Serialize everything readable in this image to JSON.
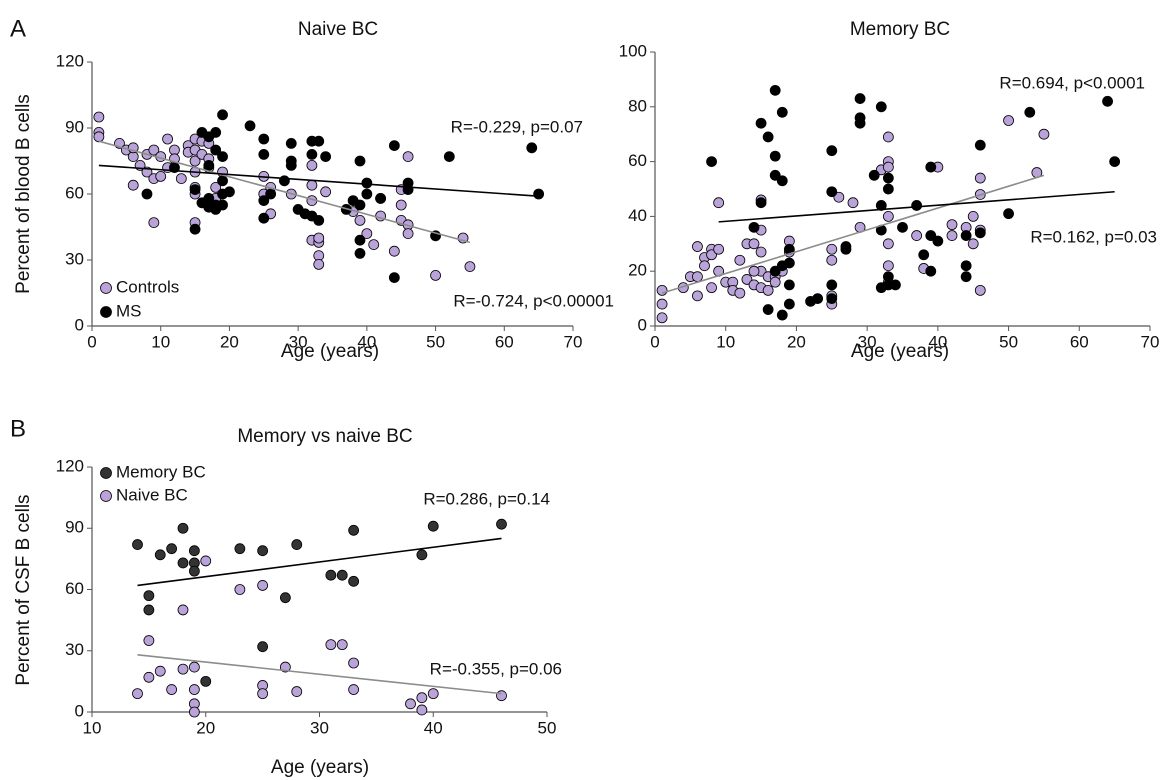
{
  "panel_labels": [
    "A",
    "B"
  ],
  "chart_data": [
    {
      "type": "scatter",
      "title": "Naive BC",
      "xlabel": "Age (years)",
      "ylabel": "Percent of blood B cells",
      "xlim": [
        0,
        70
      ],
      "ylim": [
        0,
        120
      ],
      "xticks": [
        0,
        10,
        20,
        30,
        40,
        50,
        60,
        70
      ],
      "yticks": [
        0,
        30,
        60,
        90,
        120
      ],
      "series": [
        {
          "name": "Controls",
          "color": "#b9a3d9",
          "trend_color": "#8c8c8c",
          "x": [
            1,
            1,
            1,
            4,
            5,
            6,
            6,
            6,
            7,
            8,
            8,
            9,
            9,
            9,
            10,
            10,
            11,
            11,
            12,
            12,
            13,
            14,
            14,
            15,
            15,
            15,
            15,
            15,
            15,
            15,
            16,
            16,
            17,
            17,
            17,
            18,
            18,
            19,
            25,
            25,
            26,
            26,
            29,
            32,
            32,
            32,
            32,
            33,
            33,
            33,
            33,
            34,
            38,
            39,
            40,
            41,
            42,
            42,
            45,
            45,
            45,
            46,
            46,
            50,
            54,
            55,
            46,
            44
          ],
          "y": [
            95,
            88,
            86,
            83,
            80,
            77,
            81,
            64,
            73,
            78,
            70,
            80,
            47,
            67,
            77,
            68,
            85,
            72,
            80,
            76,
            67,
            82,
            79,
            85,
            80,
            75,
            70,
            63,
            60,
            47,
            84,
            78,
            83,
            76,
            72,
            58,
            63,
            70,
            68,
            60,
            63,
            51,
            60,
            73,
            64,
            57,
            39,
            38,
            40,
            32,
            28,
            61,
            52,
            48,
            42,
            37,
            50,
            58,
            62,
            55,
            48,
            77,
            46,
            23,
            40,
            27,
            42,
            34
          ],
          "trend": {
            "x": [
              1,
              55
            ],
            "y": [
              84,
              38
            ]
          }
        },
        {
          "name": "MS",
          "color": "#000000",
          "trend_color": "#000000",
          "x": [
            8,
            12,
            15,
            15,
            16,
            17,
            17,
            18,
            18,
            18,
            17,
            19,
            19,
            19,
            19,
            19,
            18,
            17,
            16,
            20,
            23,
            25,
            25,
            25,
            25,
            26,
            28,
            29,
            29,
            29,
            30,
            31,
            32,
            32,
            32,
            33,
            33,
            34,
            37,
            38,
            39,
            39,
            39,
            39,
            40,
            40,
            42,
            44,
            44,
            46,
            46,
            50,
            52,
            64,
            65
          ],
          "y": [
            60,
            72,
            62,
            44,
            88,
            73,
            86,
            80,
            88,
            55,
            58,
            96,
            77,
            66,
            60,
            55,
            53,
            54,
            56,
            61,
            91,
            85,
            78,
            57,
            49,
            60,
            66,
            83,
            75,
            73,
            53,
            51,
            84,
            78,
            50,
            84,
            48,
            77,
            53,
            57,
            75,
            55,
            39,
            33,
            65,
            60,
            58,
            82,
            22,
            65,
            62,
            41,
            77,
            81,
            60
          ],
          "trend": {
            "x": [
              1,
              65
            ],
            "y": [
              73,
              59
            ]
          }
        }
      ],
      "annotations": [
        {
          "text": "R=-0.229, p=0.07",
          "color": "#8c8c8c"
        },
        {
          "text": "R=-0.724, p<0.00001",
          "color": "#000000"
        }
      ]
    },
    {
      "type": "scatter",
      "title": "Memory BC",
      "xlabel": "Age (years)",
      "xlim": [
        0,
        70
      ],
      "ylim": [
        0,
        100
      ],
      "xticks": [
        0,
        10,
        20,
        30,
        40,
        50,
        60,
        70
      ],
      "yticks": [
        0,
        20,
        40,
        60,
        80,
        100
      ],
      "series": [
        {
          "color": "#b9a3d9",
          "trend_color": "#8c8c8c",
          "x": [
            1,
            1,
            1,
            4,
            5,
            6,
            6,
            6,
            7,
            7,
            8,
            8,
            8,
            9,
            9,
            9,
            10,
            11,
            11,
            12,
            13,
            13,
            14,
            14,
            15,
            15,
            15,
            15,
            15,
            16,
            16,
            17,
            17,
            18,
            19,
            19,
            25,
            25,
            25,
            25,
            26,
            28,
            29,
            32,
            33,
            33,
            33,
            33,
            33,
            33,
            33,
            37,
            38,
            40,
            42,
            42,
            44,
            45,
            45,
            46,
            46,
            46,
            46,
            50,
            54,
            55,
            14,
            12
          ],
          "y": [
            13,
            8,
            3,
            14,
            18,
            18,
            29,
            11,
            25,
            22,
            28,
            26,
            14,
            45,
            28,
            20,
            16,
            16,
            13,
            12,
            30,
            17,
            30,
            15,
            46,
            35,
            27,
            20,
            14,
            18,
            13,
            18,
            16,
            20,
            31,
            27,
            28,
            24,
            11,
            8,
            47,
            45,
            36,
            57,
            69,
            60,
            58,
            40,
            30,
            16,
            22,
            33,
            21,
            58,
            37,
            33,
            36,
            40,
            30,
            54,
            48,
            13,
            35,
            75,
            56,
            70,
            20,
            24
          ],
          "trend": {
            "x": [
              1,
              55
            ],
            "y": [
              12,
              55
            ]
          }
        },
        {
          "color": "#000000",
          "trend_color": "#000000",
          "x": [
            8,
            14,
            15,
            15,
            16,
            16,
            17,
            17,
            17,
            17,
            18,
            18,
            18,
            18,
            19,
            19,
            19,
            19,
            22,
            23,
            25,
            25,
            25,
            25,
            27,
            27,
            29,
            29,
            29,
            31,
            32,
            32,
            32,
            32,
            33,
            33,
            33,
            33,
            34,
            35,
            37,
            38,
            39,
            39,
            39,
            40,
            44,
            44,
            44,
            46,
            46,
            50,
            53,
            64,
            65
          ],
          "y": [
            60,
            36,
            74,
            45,
            69,
            6,
            86,
            62,
            55,
            20,
            78,
            53,
            22,
            4,
            28,
            23,
            15,
            8,
            9,
            10,
            64,
            49,
            15,
            10,
            29,
            28,
            83,
            76,
            74,
            55,
            80,
            44,
            35,
            14,
            50,
            54,
            18,
            15,
            15,
            36,
            44,
            26,
            58,
            33,
            20,
            31,
            33,
            22,
            18,
            66,
            34,
            41,
            78,
            82,
            60
          ],
          "trend": {
            "x": [
              9,
              65
            ],
            "y": [
              38,
              49
            ]
          }
        }
      ],
      "annotations": [
        {
          "text": "R=0.694, p<0.0001",
          "color": "#8c8c8c"
        },
        {
          "text": "R=0.162, p=0.03",
          "color": "#000000"
        }
      ]
    },
    {
      "type": "scatter",
      "title": "Memory vs naive BC",
      "xlabel": "Age (years)",
      "ylabel": "Percent of CSF B cells",
      "xlim": [
        10,
        50
      ],
      "ylim": [
        0,
        120
      ],
      "xticks": [
        10,
        20,
        30,
        40,
        50
      ],
      "yticks": [
        0,
        30,
        60,
        90,
        120
      ],
      "series": [
        {
          "name": "Memory BC",
          "color": "#333333",
          "trend_color": "#000000",
          "x": [
            14,
            15,
            15,
            16,
            17,
            18,
            18,
            19,
            19,
            19,
            20,
            23,
            25,
            25,
            27,
            28,
            31,
            32,
            33,
            33,
            39,
            40,
            46
          ],
          "y": [
            82,
            57,
            50,
            77,
            80,
            73,
            90,
            79,
            73,
            69,
            15,
            80,
            79,
            32,
            56,
            82,
            67,
            67,
            64,
            89,
            77,
            91,
            92
          ],
          "trend": {
            "x": [
              14,
              46
            ],
            "y": [
              62,
              85
            ]
          }
        },
        {
          "name": "Naive BC",
          "color": "#b9a3d9",
          "trend_color": "#8c8c8c",
          "x": [
            14,
            15,
            15,
            16,
            17,
            18,
            18,
            19,
            19,
            19,
            19,
            20,
            23,
            25,
            25,
            25,
            27,
            28,
            31,
            32,
            33,
            33,
            38,
            39,
            39,
            40,
            46
          ],
          "y": [
            9,
            35,
            17,
            20,
            11,
            50,
            21,
            22,
            11,
            4,
            0,
            74,
            60,
            62,
            13,
            9,
            22,
            10,
            33,
            33,
            24,
            11,
            4,
            7,
            1,
            9,
            8
          ],
          "trend": {
            "x": [
              14,
              46
            ],
            "y": [
              28,
              9
            ]
          }
        }
      ],
      "annotations": [
        {
          "text": "R=0.286, p=0.14",
          "color": "#000000"
        },
        {
          "text": "R=-0.355, p=0.06",
          "color": "#8c8c8c"
        }
      ]
    }
  ]
}
